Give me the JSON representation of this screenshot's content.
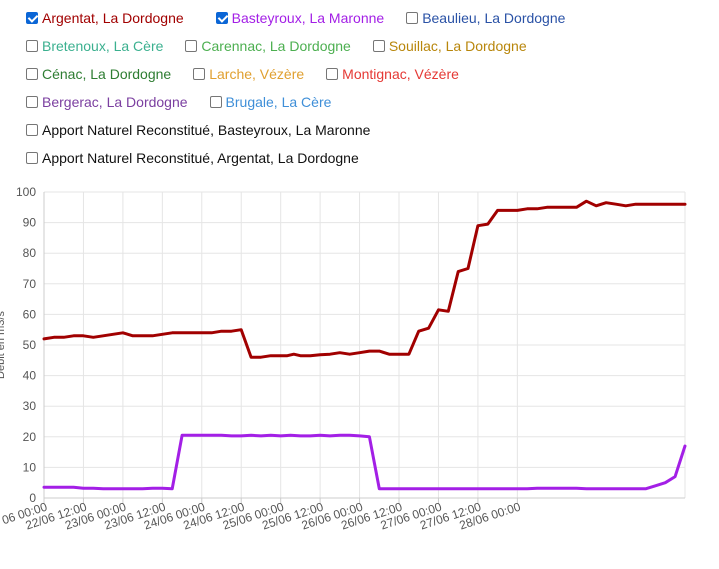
{
  "legend": {
    "items": [
      {
        "label": "Argentat, La Dordogne",
        "checked": true,
        "color": "#a10000"
      },
      {
        "label": "Basteyroux, La Maronne",
        "checked": true,
        "color": "#a31fe6"
      },
      {
        "label": "Beaulieu, La Dordogne",
        "checked": false,
        "color": "#2a52a6"
      },
      {
        "label": "Bretenoux, La Cère",
        "checked": false,
        "color": "#3bb08f"
      },
      {
        "label": "Carennac, La Dordogne",
        "checked": false,
        "color": "#4caf50"
      },
      {
        "label": "Souillac, La Dordogne",
        "checked": false,
        "color": "#b8860b"
      },
      {
        "label": "Cénac, La Dordogne",
        "checked": false,
        "color": "#2e7d32"
      },
      {
        "label": "Larche, Vézère",
        "checked": false,
        "color": "#e0a030"
      },
      {
        "label": "Montignac, Vézère",
        "checked": false,
        "color": "#e53935"
      },
      {
        "label": "Bergerac, La Dordogne",
        "checked": false,
        "color": "#7b3fa0"
      },
      {
        "label": "Brugale, La Cère",
        "checked": false,
        "color": "#3f8fd8"
      },
      {
        "label": "Apport Naturel Reconstitué, Basteyroux, La Maronne",
        "checked": false,
        "color": "#000000"
      },
      {
        "label": "Apport Naturel Reconstitué, Argentat, La Dordogne",
        "checked": false,
        "color": "#000000"
      }
    ]
  },
  "chart_data": {
    "type": "line",
    "ylabel": "Débit en m3/s",
    "ylim": [
      0,
      100
    ],
    "yticks": [
      0,
      10,
      20,
      30,
      40,
      50,
      60,
      70,
      80,
      90,
      100
    ],
    "grid": true,
    "xlim": [
      "2023-06-21 12:00",
      "2023-06-28 15:00"
    ],
    "xtick_labels": [
      "06 00:00",
      "22/06 12:00",
      "23/06 00:00",
      "23/06 12:00",
      "24/06 00:00",
      "24/06 12:00",
      "25/06 00:00",
      "25/06 12:00",
      "26/06 00:00",
      "26/06 12:00",
      "27/06 00:00",
      "27/06 12:00",
      "28/06 00:00"
    ],
    "x_unit_hours_from": "2023-06-22 00:00",
    "series": [
      {
        "name": "Argentat, La Dordogne",
        "color": "#a10000",
        "x_hours": [
          -12,
          -9,
          -6,
          -3,
          0,
          3,
          6,
          9,
          12,
          15,
          18,
          21,
          24,
          27,
          30,
          33,
          36,
          39,
          42,
          45,
          48,
          51,
          54,
          57,
          60,
          62,
          64,
          66,
          69,
          72,
          75,
          78,
          81,
          84,
          87,
          90,
          93,
          96,
          99,
          102,
          105,
          108,
          111,
          114,
          117,
          120,
          123,
          126,
          129,
          132,
          135,
          138,
          141,
          144,
          147,
          150,
          153,
          156,
          159,
          162,
          165,
          168,
          170,
          172,
          174,
          177,
          180,
          183
        ],
        "values": [
          52,
          52.5,
          52.5,
          53,
          53,
          52.5,
          53,
          53.5,
          54,
          53,
          53,
          53,
          53.5,
          54,
          54,
          54,
          54,
          54,
          54.5,
          54.5,
          55,
          46,
          46,
          46.5,
          46.5,
          46.5,
          47,
          46.5,
          46.5,
          46.8,
          47,
          47.5,
          47,
          47.5,
          48,
          48,
          47,
          47,
          47,
          54.5,
          55.5,
          61.5,
          61,
          74,
          75,
          89,
          89.5,
          94,
          94,
          94,
          94.5,
          94.5,
          95,
          95,
          95,
          95,
          97,
          95.5,
          96.5,
          96,
          95.5,
          96,
          96,
          96,
          96,
          96,
          96,
          96
        ]
      },
      {
        "name": "Basteyroux, La Maronne",
        "color": "#a31fe6",
        "x_hours": [
          -12,
          -9,
          -6,
          -3,
          0,
          3,
          6,
          9,
          12,
          15,
          18,
          21,
          24,
          27,
          30,
          33,
          36,
          39,
          42,
          45,
          48,
          51,
          54,
          57,
          60,
          63,
          66,
          69,
          72,
          75,
          78,
          81,
          84,
          87,
          90,
          93,
          96,
          99,
          102,
          105,
          108,
          111,
          114,
          117,
          120,
          123,
          126,
          129,
          132,
          135,
          138,
          141,
          144,
          147,
          150,
          153,
          156,
          159,
          162,
          165,
          168,
          171,
          174,
          177,
          180,
          183
        ],
        "values": [
          3.5,
          3.5,
          3.5,
          3.5,
          3.2,
          3.2,
          3,
          3,
          3,
          3,
          3,
          3.2,
          3.2,
          3,
          20.5,
          20.5,
          20.5,
          20.5,
          20.5,
          20.3,
          20.3,
          20.5,
          20.3,
          20.5,
          20.3,
          20.5,
          20.3,
          20.3,
          20.5,
          20.3,
          20.5,
          20.5,
          20.3,
          20,
          3,
          3,
          3,
          3,
          3,
          3,
          3,
          3,
          3,
          3,
          3,
          3,
          3,
          3,
          3,
          3,
          3.2,
          3.2,
          3.2,
          3.2,
          3.2,
          3,
          3,
          3,
          3,
          3,
          3,
          3,
          4,
          5,
          7,
          17
        ]
      }
    ]
  }
}
